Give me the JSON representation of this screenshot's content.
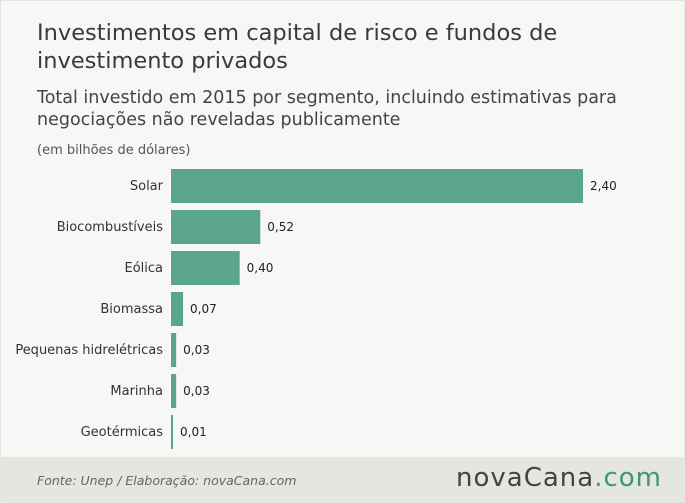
{
  "header": {
    "title": "Investimentos em capital de risco e fundos de investimento privados",
    "subtitle": "Total investido em 2015 por segmento, incluindo estimativas para negociações não reveladas publicamente",
    "unit": "(em bilhões de dólares)"
  },
  "footer": {
    "source": "Fonte:  Unep / Elaboração:  novaCana.com",
    "logo_main": "novaCana",
    "logo_tld": ".com"
  },
  "colors": {
    "bar": "#5ba58a",
    "accent": "#3d9a6c"
  },
  "chart_data": {
    "type": "bar",
    "orientation": "horizontal",
    "categories": [
      "Solar",
      "Biocombustíveis",
      "Eólica",
      "Biomassa",
      "Pequenas hidrelétricas",
      "Marinha",
      "Geotérmicas"
    ],
    "values": [
      2.4,
      0.52,
      0.4,
      0.07,
      0.03,
      0.03,
      0.01
    ],
    "value_labels": [
      "2,40",
      "0,52",
      "0,40",
      "0,07",
      "0,03",
      "0,03",
      "0,01"
    ],
    "title": "Investimentos em capital de risco e fundos de investimento privados",
    "xlabel": "",
    "ylabel": "",
    "xlim": [
      0,
      2.4
    ],
    "grid": false,
    "legend": "none"
  }
}
